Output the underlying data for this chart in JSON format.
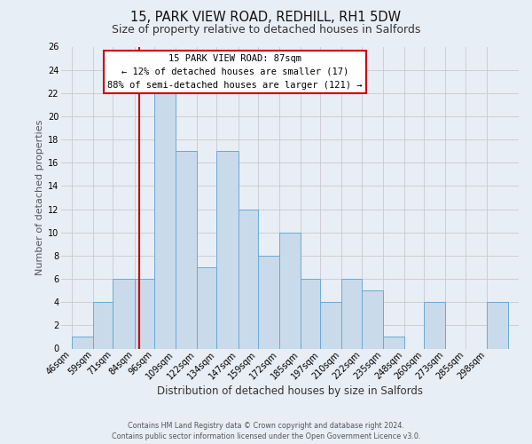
{
  "title_line1": "15, PARK VIEW ROAD, REDHILL, RH1 5DW",
  "title_line2": "Size of property relative to detached houses in Salfords",
  "xlabel": "Distribution of detached houses by size in Salfords",
  "ylabel": "Number of detached properties",
  "bin_labels": [
    "46sqm",
    "59sqm",
    "71sqm",
    "84sqm",
    "96sqm",
    "109sqm",
    "122sqm",
    "134sqm",
    "147sqm",
    "159sqm",
    "172sqm",
    "185sqm",
    "197sqm",
    "210sqm",
    "222sqm",
    "235sqm",
    "248sqm",
    "260sqm",
    "273sqm",
    "285sqm",
    "298sqm"
  ],
  "bin_edges": [
    46,
    59,
    71,
    84,
    96,
    109,
    122,
    134,
    147,
    159,
    172,
    185,
    197,
    210,
    222,
    235,
    248,
    260,
    273,
    285,
    298,
    311
  ],
  "counts": [
    1,
    4,
    6,
    6,
    22,
    17,
    7,
    17,
    12,
    8,
    10,
    6,
    4,
    6,
    5,
    1,
    0,
    4,
    0,
    0,
    4
  ],
  "bar_facecolor": "#c9daea",
  "bar_edgecolor": "#6aaad4",
  "grid_color": "#c8c8d0",
  "background_color": "#e8eef5",
  "property_size": 87,
  "red_line_color": "#cc0000",
  "annotation_line1": "15 PARK VIEW ROAD: 87sqm",
  "annotation_line2": "← 12% of detached houses are smaller (17)",
  "annotation_line3": "88% of semi-detached houses are larger (121) →",
  "annotation_box_facecolor": "#ffffff",
  "annotation_box_edgecolor": "#cc0000",
  "ylim": [
    0,
    26
  ],
  "yticks": [
    0,
    2,
    4,
    6,
    8,
    10,
    12,
    14,
    16,
    18,
    20,
    22,
    24,
    26
  ],
  "footer_line1": "Contains HM Land Registry data © Crown copyright and database right 2024.",
  "footer_line2": "Contains public sector information licensed under the Open Government Licence v3.0.",
  "title_fontsize": 10.5,
  "subtitle_fontsize": 9,
  "ylabel_fontsize": 8,
  "xlabel_fontsize": 8.5,
  "tick_fontsize": 7,
  "annotation_fontsize": 7.5,
  "footer_fontsize": 5.8
}
